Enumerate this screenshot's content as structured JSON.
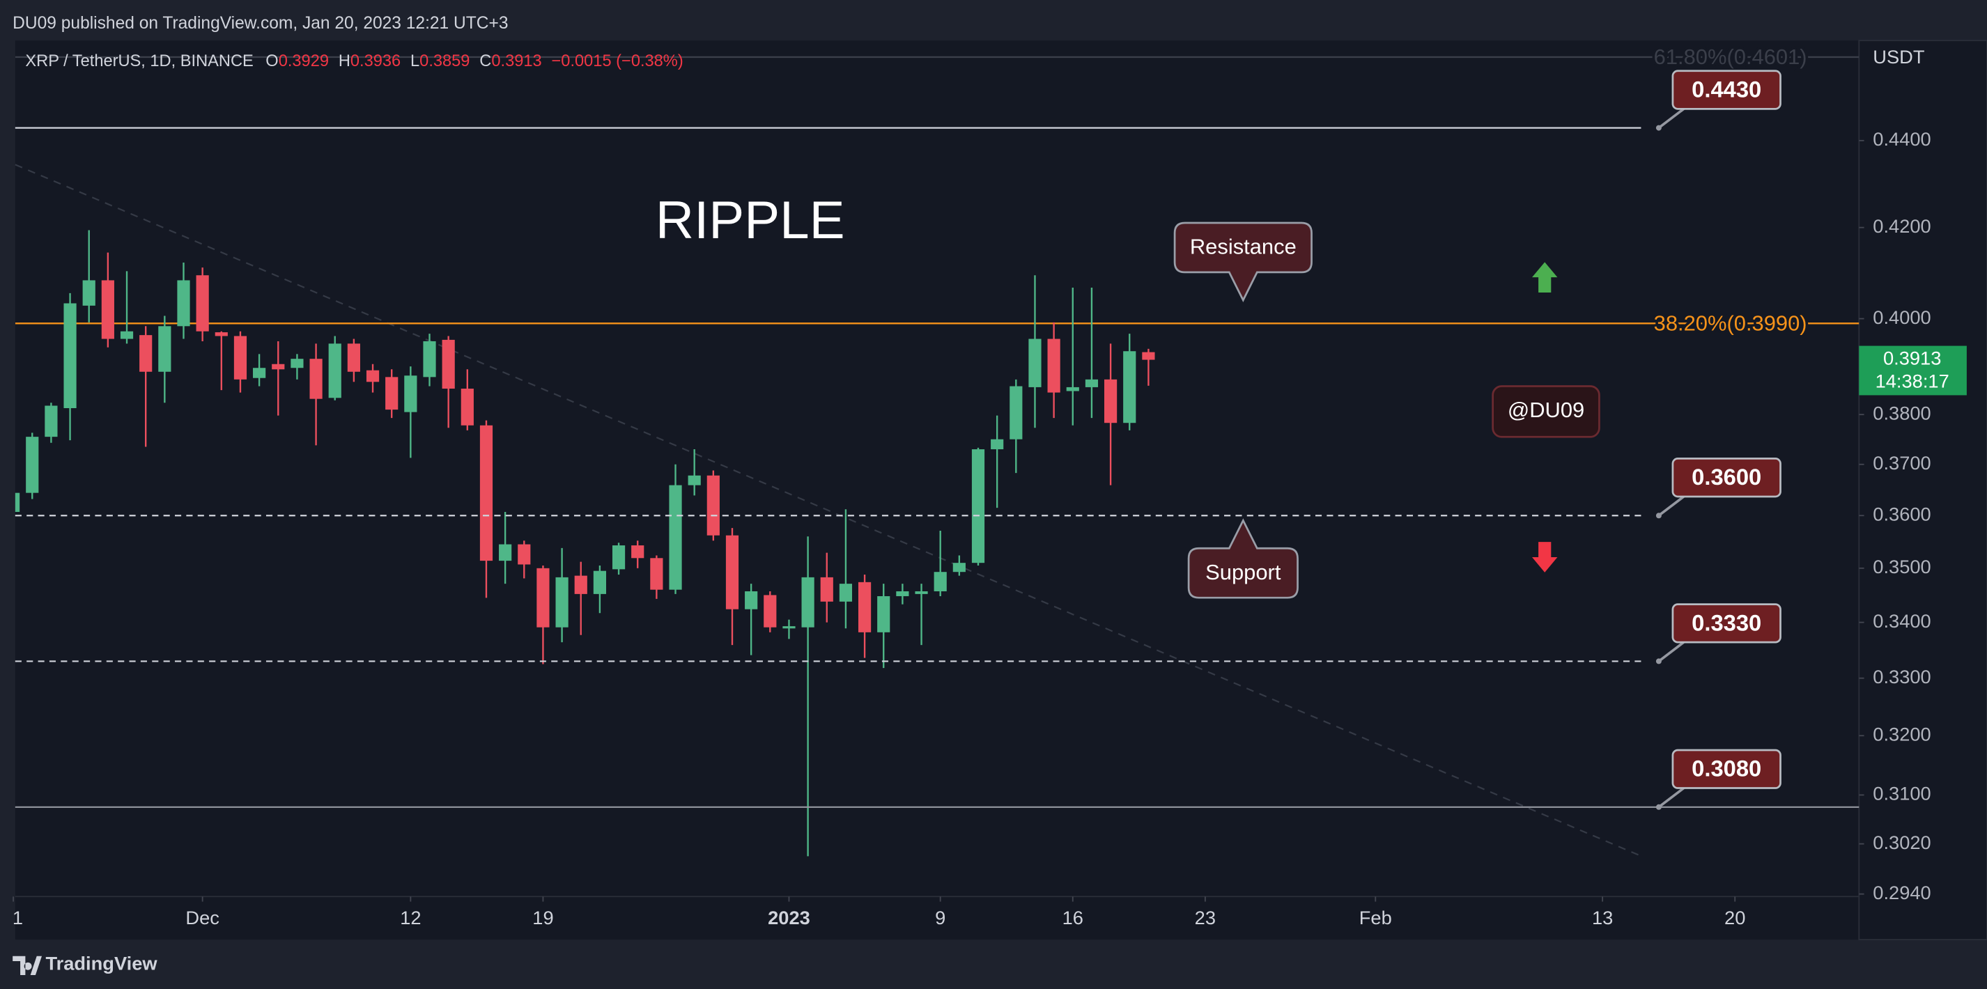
{
  "header": {
    "text": "DU09 published on TradingView.com, Jan 20, 2023 12:21 UTC+3"
  },
  "footer": {
    "brand": "TradingView"
  },
  "chart_data": {
    "type": "candlestick",
    "legend": {
      "symbol": "XRP / TetherUS, 1D, BINANCE",
      "letters": [
        "O",
        "H",
        "L",
        "C"
      ],
      "change": "−0.0015 (−0.38%)"
    },
    "y_axis_unit": "USDT",
    "log_scale": true,
    "grid": false,
    "up_color": "#4fb788",
    "down_color": "#ec4f5e",
    "ylim": [
      0.2936,
      0.4642
    ],
    "yticks": [
      {
        "value": 0.44,
        "label": "0.4400"
      },
      {
        "value": 0.42,
        "label": "0.4200"
      },
      {
        "value": 0.4,
        "label": "0.4000"
      },
      {
        "value": 0.38,
        "label": "0.3800"
      },
      {
        "value": 0.37,
        "label": "0.3700"
      },
      {
        "value": 0.36,
        "label": "0.3600"
      },
      {
        "value": 0.35,
        "label": "0.3500"
      },
      {
        "value": 0.34,
        "label": "0.3400"
      },
      {
        "value": 0.33,
        "label": "0.3300"
      },
      {
        "value": 0.32,
        "label": "0.3200"
      },
      {
        "value": 0.31,
        "label": "0.3100"
      },
      {
        "value": 0.302,
        "label": "0.3020"
      },
      {
        "value": 0.294,
        "label": "0.2940"
      }
    ],
    "xlim": [
      "2022-11-21",
      "2023-02-27"
    ],
    "xticks": [
      {
        "value": "2022-11-21",
        "label": "1"
      },
      {
        "value": "2022-12-01",
        "label": "Dec"
      },
      {
        "value": "2022-12-12",
        "label": "12"
      },
      {
        "value": "2022-12-19",
        "label": "19"
      },
      {
        "value": "2023-01-01",
        "label": "2023"
      },
      {
        "value": "2023-01-09",
        "label": "9"
      },
      {
        "value": "2023-01-16",
        "label": "16"
      },
      {
        "value": "2023-01-23",
        "label": "23"
      },
      {
        "value": "2023-02-01",
        "label": "Feb"
      },
      {
        "value": "2023-02-13",
        "label": "13"
      },
      {
        "value": "2023-02-20",
        "label": "20"
      }
    ],
    "x": [
      "2022-11-21",
      "2022-11-22",
      "2022-11-23",
      "2022-11-24",
      "2022-11-25",
      "2022-11-26",
      "2022-11-27",
      "2022-11-28",
      "2022-11-29",
      "2022-11-30",
      "2022-12-01",
      "2022-12-02",
      "2022-12-03",
      "2022-12-04",
      "2022-12-05",
      "2022-12-06",
      "2022-12-07",
      "2022-12-08",
      "2022-12-09",
      "2022-12-10",
      "2022-12-11",
      "2022-12-12",
      "2022-12-13",
      "2022-12-14",
      "2022-12-15",
      "2022-12-16",
      "2022-12-17",
      "2022-12-18",
      "2022-12-19",
      "2022-12-20",
      "2022-12-21",
      "2022-12-22",
      "2022-12-23",
      "2022-12-24",
      "2022-12-25",
      "2022-12-26",
      "2022-12-27",
      "2022-12-28",
      "2022-12-29",
      "2022-12-30",
      "2022-12-31",
      "2023-01-01",
      "2023-01-02",
      "2023-01-03",
      "2023-01-04",
      "2023-01-05",
      "2023-01-06",
      "2023-01-07",
      "2023-01-08",
      "2023-01-09",
      "2023-01-10",
      "2023-01-11",
      "2023-01-12",
      "2023-01-13",
      "2023-01-14",
      "2023-01-15",
      "2023-01-16",
      "2023-01-17",
      "2023-01-18",
      "2023-01-19",
      "2023-01-20"
    ],
    "open": [
      0.3607,
      0.3644,
      0.3755,
      0.3813,
      0.4028,
      0.4083,
      0.3957,
      0.3965,
      0.3888,
      0.3984,
      0.4094,
      0.3971,
      0.3963,
      0.3875,
      0.3904,
      0.3896,
      0.3915,
      0.3834,
      0.3947,
      0.3891,
      0.3877,
      0.3805,
      0.3877,
      0.3955,
      0.3853,
      0.3778,
      0.3514,
      0.3545,
      0.35,
      0.3391,
      0.3486,
      0.3452,
      0.3498,
      0.3543,
      0.3519,
      0.346,
      0.3659,
      0.3678,
      0.3562,
      0.3424,
      0.345,
      0.3389,
      0.3391,
      0.3483,
      0.3438,
      0.3474,
      0.3382,
      0.3448,
      0.3452,
      0.3457,
      0.3493,
      0.351,
      0.373,
      0.375,
      0.3856,
      0.3957,
      0.3848,
      0.3856,
      0.3872,
      0.3783,
      0.3929
    ],
    "high": [
      0.3649,
      0.3763,
      0.3824,
      0.4055,
      0.4194,
      0.4144,
      0.4103,
      0.3984,
      0.4006,
      0.4122,
      0.4111,
      0.3973,
      0.3973,
      0.3925,
      0.3952,
      0.3925,
      0.3947,
      0.3963,
      0.3957,
      0.3904,
      0.3893,
      0.3899,
      0.3968,
      0.3963,
      0.3893,
      0.3788,
      0.3607,
      0.3552,
      0.3505,
      0.3538,
      0.3512,
      0.3505,
      0.3548,
      0.3552,
      0.3524,
      0.37,
      0.373,
      0.3688,
      0.3576,
      0.3471,
      0.3457,
      0.3405,
      0.356,
      0.3529,
      0.3612,
      0.3488,
      0.3471,
      0.3471,
      0.3471,
      0.3571,
      0.3524,
      0.3733,
      0.3798,
      0.3872,
      0.4094,
      0.3992,
      0.4067,
      0.4067,
      0.3947,
      0.3968,
      0.3936
    ],
    "low": [
      0.3519,
      0.3632,
      0.3743,
      0.3748,
      0.3992,
      0.3939,
      0.3947,
      0.3735,
      0.3824,
      0.3957,
      0.3952,
      0.385,
      0.3845,
      0.3858,
      0.3798,
      0.3872,
      0.3738,
      0.3829,
      0.3867,
      0.3845,
      0.3793,
      0.3713,
      0.3858,
      0.3773,
      0.3768,
      0.3445,
      0.3471,
      0.3481,
      0.3325,
      0.3364,
      0.3377,
      0.3417,
      0.3488,
      0.35,
      0.3443,
      0.3452,
      0.3639,
      0.3552,
      0.3359,
      0.3341,
      0.3382,
      0.337,
      0.3,
      0.34,
      0.3389,
      0.3336,
      0.3318,
      0.3433,
      0.3359,
      0.3448,
      0.3486,
      0.3505,
      0.3615,
      0.3683,
      0.3773,
      0.3793,
      0.3778,
      0.3793,
      0.3659,
      0.3768,
      0.3859
    ],
    "close": [
      0.3644,
      0.3755,
      0.3818,
      0.4033,
      0.4083,
      0.3957,
      0.3973,
      0.3888,
      0.3984,
      0.4083,
      0.3973,
      0.3963,
      0.3872,
      0.3896,
      0.3893,
      0.3915,
      0.3832,
      0.3947,
      0.3888,
      0.3867,
      0.381,
      0.388,
      0.3952,
      0.3853,
      0.3778,
      0.3514,
      0.3545,
      0.3507,
      0.3391,
      0.3483,
      0.3452,
      0.3495,
      0.3543,
      0.3519,
      0.346,
      0.3659,
      0.3678,
      0.3562,
      0.3424,
      0.3457,
      0.3391,
      0.3393,
      0.3483,
      0.3438,
      0.3471,
      0.3382,
      0.3448,
      0.3457,
      0.3457,
      0.3493,
      0.351,
      0.373,
      0.375,
      0.3858,
      0.3957,
      0.3845,
      0.3856,
      0.3872,
      0.3783,
      0.3931,
      0.3913
    ],
    "countdown": "14:38:17",
    "levels": [
      {
        "value": 0.443,
        "label": "0.4430",
        "style": "solid",
        "color": "#d1d4dc"
      },
      {
        "value": 0.36,
        "label": "0.3600",
        "style": "dashed",
        "color": "#d1d4dc"
      },
      {
        "value": 0.333,
        "label": "0.3330",
        "style": "dashed",
        "color": "#d1d4dc"
      },
      {
        "value": 0.308,
        "label": "0.3080",
        "style": "solid",
        "color": "#9598a1",
        "extend": "right"
      }
    ],
    "fib_levels": [
      {
        "value": 0.399,
        "label": "38.20%(0.3990)",
        "color": "#f7931a"
      },
      {
        "value": 0.4601,
        "label": "61.80%(0.4601)",
        "color": "#3b3f4a"
      }
    ],
    "annotations": {
      "title": "RIPPLE",
      "resistance": "Resistance",
      "support": "Support",
      "author": "@DU09"
    }
  }
}
